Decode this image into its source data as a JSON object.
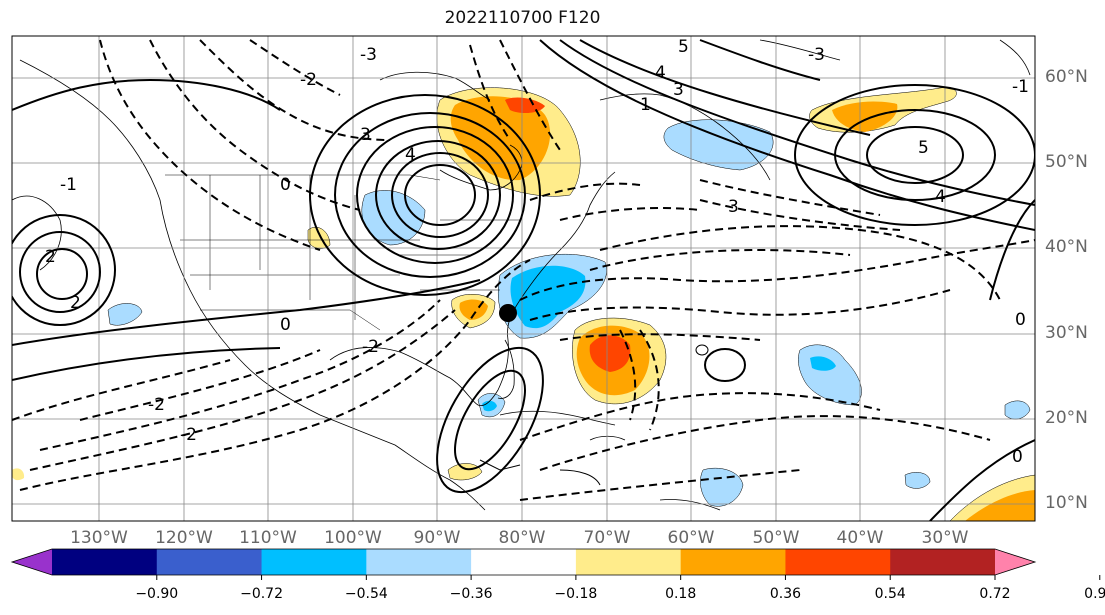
{
  "title": "2022110700 F120",
  "map": {
    "projection": "lat-lon",
    "lon_range_deg": [
      -138,
      15
    ],
    "lat_range_deg": [
      8,
      65
    ],
    "lon_labels": [
      "130°W",
      "120°W",
      "110°W",
      "100°W",
      "90°W",
      "80°W",
      "70°W",
      "60°W",
      "50°W",
      "40°W",
      "30°W"
    ],
    "lat_labels": [
      "60°N",
      "50°N",
      "40°N",
      "30°N",
      "20°N",
      "10°N"
    ],
    "gridlines": true,
    "marker": {
      "lon": -80,
      "lat": 32,
      "color": "#000000"
    },
    "contour_labels": [
      "5",
      "4",
      "3",
      "2",
      "1",
      "0",
      "-1",
      "-2",
      "-3"
    ]
  },
  "colorbar": {
    "ticks": [
      "−0.90",
      "−0.72",
      "−0.54",
      "−0.36",
      "−0.18",
      "0.18",
      "0.36",
      "0.54",
      "0.72",
      "0.90"
    ],
    "colors": [
      "#9932cc",
      "#000080",
      "#3a5fcd",
      "#00bfff",
      "#aadcff",
      "#ffffff",
      "#ffec8b",
      "#ffa500",
      "#ff4500",
      "#b22222",
      "#ff82ab"
    ],
    "extend": "both"
  }
}
